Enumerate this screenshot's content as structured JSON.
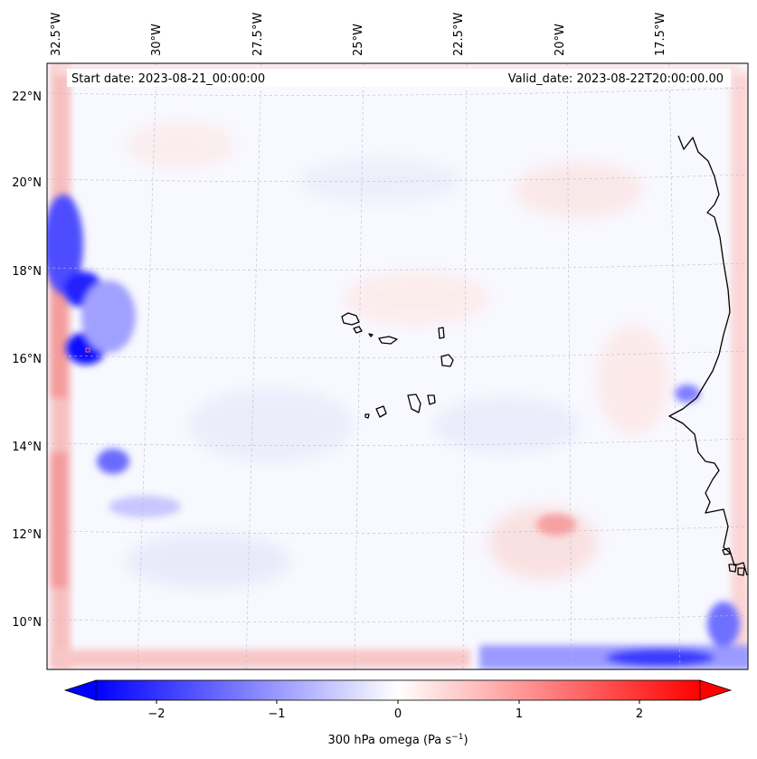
{
  "map": {
    "header": {
      "start_date": "Start date: 2023-08-21_00:00:00",
      "valid_date": "Valid_date: 2023-08-22T20:00:00.00"
    },
    "lon_labels": [
      "32.5°W",
      "30°W",
      "27.5°W",
      "25°W",
      "22.5°W",
      "20°W",
      "17.5°W"
    ],
    "lat_labels": [
      "22°N",
      "20°N",
      "18°N",
      "16°N",
      "14°N",
      "12°N",
      "10°N"
    ],
    "colorbar": {
      "ticks": [
        "−2",
        "−1",
        "0",
        "1",
        "2"
      ],
      "label_main": "300 hPa omega (Pa s",
      "label_exp": "−1",
      "label_end": ")",
      "range": [
        -2.6,
        2.6
      ],
      "colors": {
        "negative": "#0000ff",
        "zero": "#ffffff",
        "positive": "#ff0000"
      }
    }
  }
}
